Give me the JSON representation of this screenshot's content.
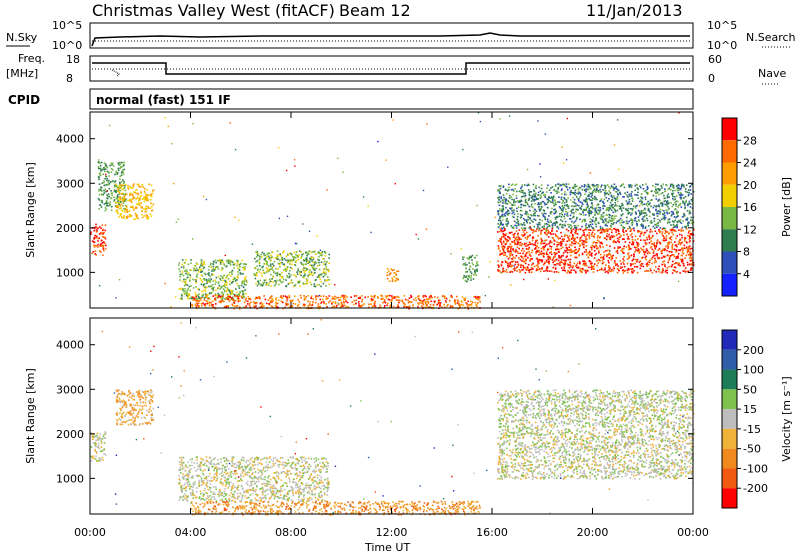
{
  "header": {
    "station": "Christmas Valley West (fitACF)",
    "beam": "Beam 12",
    "date": "11/Jan/2013"
  },
  "param_panels": {
    "left_top": "N.Sky",
    "left_freq_1": "Freq.",
    "left_freq_2": "[MHz]",
    "left_cpid": "CPID",
    "right_top": "N.Search",
    "right_mid": "Nave",
    "cpid_text": "normal (fast) 151 IF",
    "nsky_ticks": [
      "10^5",
      "10^0"
    ],
    "nsearch_ticks": [
      "10^5",
      "10^0"
    ],
    "freq_ticks": [
      "18",
      "8"
    ],
    "nave_ticks": [
      "60",
      "0"
    ]
  },
  "axes": {
    "ylabel": "Slant Range [km]",
    "xlabel": "Time UT",
    "x_ticks": [
      "00:00",
      "04:00",
      "08:00",
      "12:00",
      "16:00",
      "20:00",
      "00:00"
    ],
    "y_ticks": [
      "1000",
      "2000",
      "3000",
      "4000"
    ]
  },
  "power_colorbar": {
    "label": "Power [dB]",
    "ticks": [
      "28",
      "24",
      "20",
      "16",
      "12",
      "8",
      "4"
    ],
    "colors": [
      "#ff0000",
      "#ff6a00",
      "#ff9d00",
      "#f2d000",
      "#79b845",
      "#2f7d4f",
      "#2c4fb8",
      "#1422ff"
    ]
  },
  "velocity_colorbar": {
    "label": "Velocity [m s⁻¹]",
    "ticks": [
      "200",
      "100",
      "50",
      "15",
      "-15",
      "-50",
      "-100",
      "-200"
    ],
    "colors": [
      "#2029b8",
      "#2f5da8",
      "#1e7d58",
      "#7fc24d",
      "#bdbdbd",
      "#f0b33a",
      "#f08a1e",
      "#f25a14",
      "#ff0000"
    ]
  },
  "chart_data": [
    {
      "type": "heatmap",
      "title": "Power [dB]",
      "xlabel": "Time UT",
      "ylabel": "Slant Range [km]",
      "xlim": [
        0,
        24
      ],
      "ylim": [
        200,
        4600
      ],
      "zlim": [
        0,
        32
      ],
      "regions": [
        {
          "t": [
            0.0,
            0.6
          ],
          "r": [
            1400,
            2100
          ],
          "level": 28
        },
        {
          "t": [
            0.3,
            1.4
          ],
          "r": [
            2400,
            3500
          ],
          "level": 12
        },
        {
          "t": [
            1.0,
            2.5
          ],
          "r": [
            2200,
            3000
          ],
          "level": 20
        },
        {
          "t": [
            3.5,
            6.2
          ],
          "r": [
            400,
            1300
          ],
          "level": 14
        },
        {
          "t": [
            6.5,
            9.5
          ],
          "r": [
            700,
            1500
          ],
          "level": 14
        },
        {
          "t": [
            11.8,
            12.3
          ],
          "r": [
            800,
            1100
          ],
          "level": 24
        },
        {
          "t": [
            14.8,
            15.4
          ],
          "r": [
            800,
            1400
          ],
          "level": 12
        },
        {
          "t": [
            16.2,
            24.0
          ],
          "r": [
            1000,
            2000
          ],
          "level": 28
        },
        {
          "t": [
            16.2,
            24.0
          ],
          "r": [
            2000,
            3000
          ],
          "level": 10
        },
        {
          "t": [
            4.0,
            15.5
          ],
          "r": [
            200,
            500
          ],
          "level": 26
        }
      ]
    },
    {
      "type": "heatmap",
      "title": "Velocity [m s⁻¹]",
      "xlabel": "Time UT",
      "ylabel": "Slant Range [km]",
      "xlim": [
        0,
        24
      ],
      "ylim": [
        200,
        4600
      ],
      "zlim": [
        -200,
        200
      ],
      "regions": [
        {
          "t": [
            0.0,
            0.6
          ],
          "r": [
            1400,
            2100
          ],
          "level": 0
        },
        {
          "t": [
            1.0,
            2.5
          ],
          "r": [
            2200,
            3000
          ],
          "level": -60
        },
        {
          "t": [
            3.5,
            9.5
          ],
          "r": [
            500,
            1500
          ],
          "level": 0
        },
        {
          "t": [
            16.2,
            24.0
          ],
          "r": [
            1000,
            2000
          ],
          "level": 0
        },
        {
          "t": [
            16.2,
            24.0
          ],
          "r": [
            2000,
            3000
          ],
          "level": 10
        },
        {
          "t": [
            4.0,
            15.5
          ],
          "r": [
            200,
            500
          ],
          "level": -80
        }
      ]
    }
  ]
}
